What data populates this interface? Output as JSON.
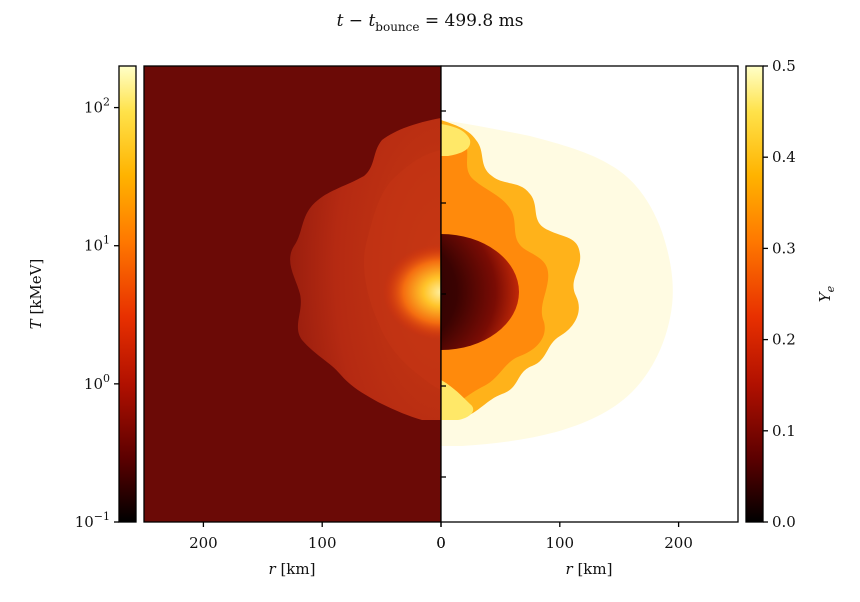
{
  "chart_data": {
    "type": "heatmap",
    "title": "t − t",
    "title_sub": "bounce",
    "title_value": " = 499.8 ms",
    "left_colorbar": {
      "label_symbol": "T",
      "label_unit": " [kMeV]",
      "scale": "log",
      "range": [
        0.1,
        200
      ],
      "ticks": [
        {
          "value": 0.1,
          "base": "10",
          "exp": "−1"
        },
        {
          "value": 1,
          "base": "10",
          "exp": "0"
        },
        {
          "value": 10,
          "base": "10",
          "exp": "1"
        },
        {
          "value": 100,
          "base": "10",
          "exp": "2"
        }
      ],
      "colormap": [
        "#000000",
        "#5c0000",
        "#b01000",
        "#e83000",
        "#ff7a00",
        "#ffb300",
        "#ffe24a",
        "#ffffc8"
      ]
    },
    "right_colorbar": {
      "label_symbol": "Y",
      "label_sub": "e",
      "scale": "linear",
      "range": [
        0.0,
        0.5
      ],
      "ticks": [
        {
          "value": 0.0,
          "label": "0.0"
        },
        {
          "value": 0.1,
          "label": "0.1"
        },
        {
          "value": 0.2,
          "label": "0.2"
        },
        {
          "value": 0.3,
          "label": "0.3"
        },
        {
          "value": 0.4,
          "label": "0.4"
        },
        {
          "value": 0.5,
          "label": "0.5"
        }
      ],
      "colormap": [
        "#000000",
        "#5c0000",
        "#b01000",
        "#e83000",
        "#ff7a00",
        "#ffb300",
        "#ffe24a",
        "#ffffc8"
      ]
    },
    "left_panel": {
      "quantity": "T",
      "xlabel_symbol": "r",
      "xlabel_unit": " [km]",
      "xlim": [
        250,
        0
      ],
      "xticks": [
        {
          "value": 200,
          "label": "200"
        },
        {
          "value": 100,
          "label": "100"
        },
        {
          "value": 0,
          "label": "0"
        }
      ],
      "background_color": "#6b0a06",
      "shock_color": "#b52a12",
      "core_color": "#ffc02a"
    },
    "right_panel": {
      "quantity": "Ye",
      "xlabel_symbol": "r",
      "xlabel_unit": " [km]",
      "xlim": [
        0,
        250
      ],
      "xticks": [
        {
          "value": 0,
          "label": "0"
        },
        {
          "value": 100,
          "label": "100"
        },
        {
          "value": 200,
          "label": "200"
        }
      ],
      "background_color": "#ffffff",
      "shocked_color": "#fffbe2",
      "plume_color": "#ff9a10",
      "core_color": "#2a0000"
    },
    "grid": false
  }
}
